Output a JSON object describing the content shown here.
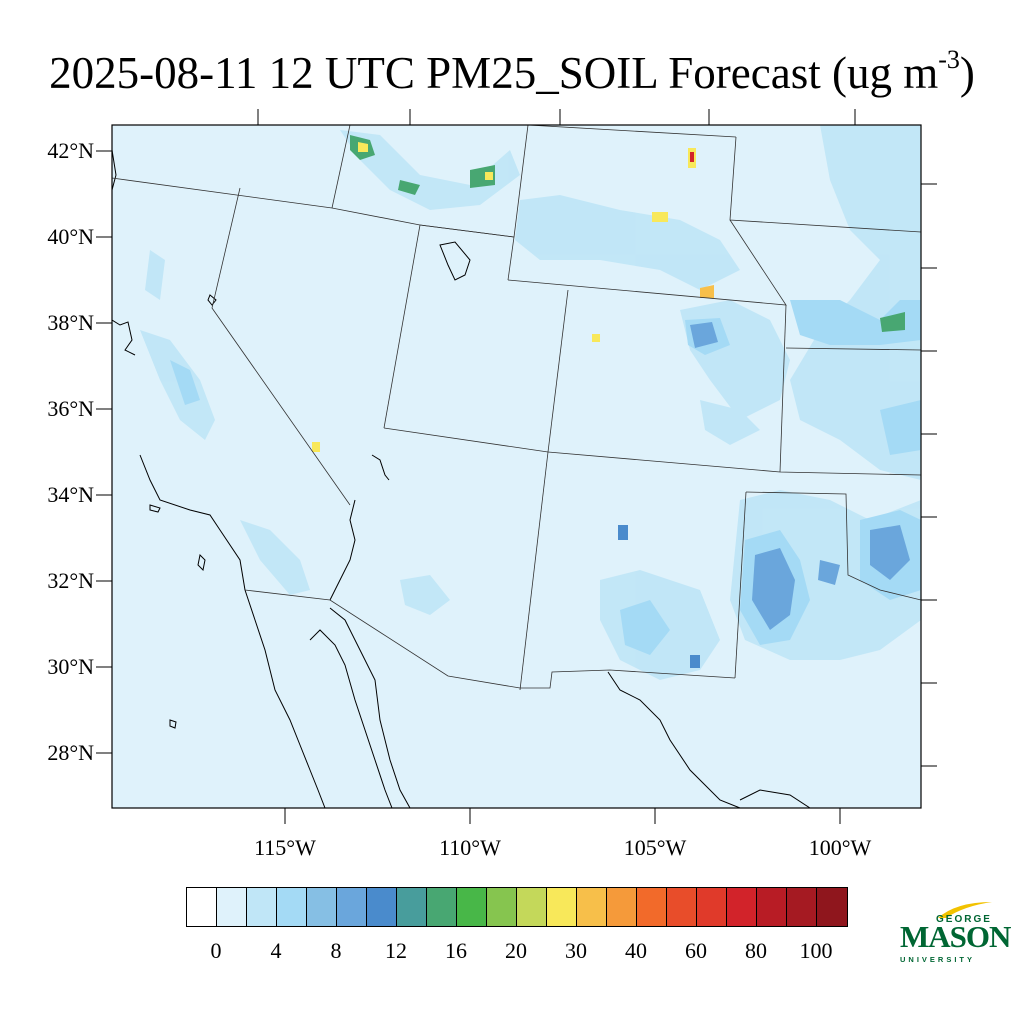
{
  "title": {
    "text": "2025-08-11 12 UTC PM25_SOIL Forecast (ug m",
    "superscript": "-3",
    "close": ")"
  },
  "map": {
    "latitude_labels": [
      "42°N",
      "40°N",
      "38°N",
      "36°N",
      "34°N",
      "32°N",
      "30°N",
      "28°N"
    ],
    "longitude_labels": [
      "115°W",
      "110°W",
      "105°W",
      "100°W"
    ],
    "background_color": "#dff2fb",
    "outline_color": "#000000"
  },
  "colorbar": {
    "colors": [
      "#ffffff",
      "#dff2fb",
      "#c0e6f7",
      "#a4daf5",
      "#86bfe4",
      "#6aa6dc",
      "#4a8bcc",
      "#489d9c",
      "#48a772",
      "#48b748",
      "#86c54f",
      "#c4d85a",
      "#f8e85a",
      "#f7bf4a",
      "#f59a3a",
      "#f26a2a",
      "#e84d2a",
      "#e03a2a",
      "#d2232a",
      "#b81c25",
      "#a51a22",
      "#8f161d"
    ],
    "labels": [
      "0",
      "4",
      "8",
      "12",
      "16",
      "20",
      "30",
      "40",
      "60",
      "80",
      "100"
    ]
  },
  "logo": {
    "line1": "GEORGE",
    "line2": "MASON",
    "line3": "UNIVERSITY",
    "color": "#006633"
  }
}
